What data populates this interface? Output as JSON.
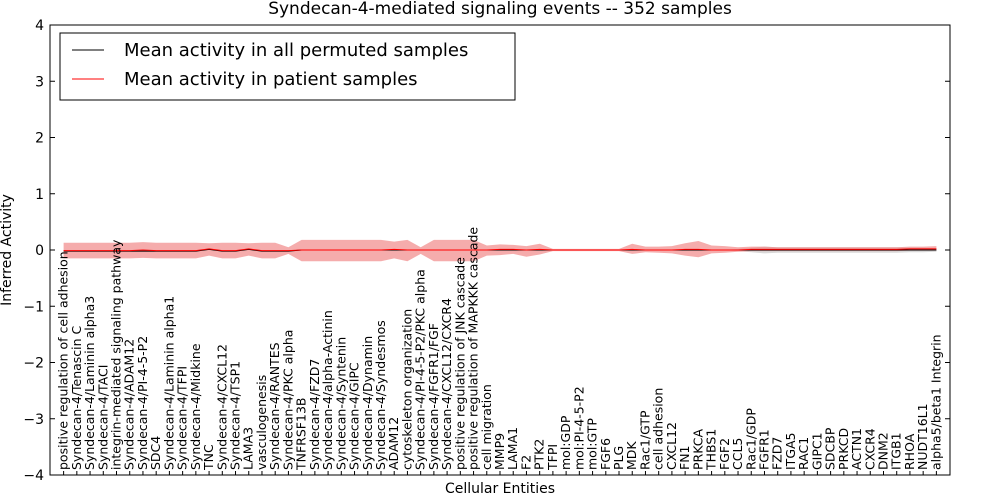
{
  "chart_data": {
    "type": "line",
    "title": "Syndecan-4-mediated signaling events -- 352 samples",
    "xlabel": "Cellular Entities",
    "ylabel": "Inferred Activity",
    "ylim": [
      -4,
      4
    ],
    "yticks": [
      -4,
      -3,
      -2,
      -1,
      0,
      1,
      2,
      3,
      4
    ],
    "ytick_labels": [
      "−4",
      "−3",
      "−2",
      "−1",
      "0",
      "1",
      "2",
      "3",
      "4"
    ],
    "grid": false,
    "legend_position": "top-left",
    "colors": {
      "permuted": "#000000",
      "patient": "#ff0000",
      "band": "#f08080",
      "grey_band": "#c0c0c0"
    },
    "categories": [
      "positive regulation of cell adhesion",
      "Syndecan-4/Tenascin C",
      "Syndecan-4/Laminin alpha3",
      "Syndecan-4/TACI",
      "integrin-mediated signaling pathway",
      "Syndecan-4/ADAM12",
      "Syndecan-4/PI-4-5-P2",
      "SDC4",
      "Syndecan-4/Laminin alpha1",
      "Syndecan-4/TFPI",
      "Syndecan-4/Midkine",
      "TNC",
      "Syndecan-4/CXCL12",
      "Syndecan-4/TSP1",
      "LAMA3",
      "vasculogenesis",
      "Syndecan-4/RANTES",
      "Syndecan-4/PKC alpha",
      "TNFRSF13B",
      "Syndecan-4/FZD7",
      "Syndecan-4/alpha-Actinin",
      "Syndecan-4/Syntenin",
      "Syndecan-4/GIPC",
      "Syndecan-4/Dynamin",
      "Syndecan-4/Syndesmos",
      "ADAM12",
      "cytoskeleton organization",
      "Syndecan-4/PI-4-5-P2/PKC alpha",
      "Syndecan-4/FGFR1/FGF",
      "Syndecan-4/CXCL12/CXCR4",
      "positive regulation of JNK cascade",
      "positive regulation of MAPKKK cascade",
      "cell migration",
      "MMP9",
      "LAMA1",
      "F2",
      "PTK2",
      "TFPI",
      "mol:GDP",
      "mol:PI-4-5-P2",
      "mol:GTP",
      "FGF6",
      "PLG",
      "MDK",
      "Rac1/GTP",
      "cell adhesion",
      "CXCL12",
      "FN1",
      "PRKCA",
      "THBS1",
      "FGF2",
      "CCL5",
      "Rac1/GDP",
      "FGFR1",
      "FZD7",
      "ITGA5",
      "RAC1",
      "GIPC1",
      "SDCBP",
      "PRKCD",
      "ACTN1",
      "CXCR4",
      "DNM2",
      "ITGB1",
      "RHOA",
      "NUDT16L1",
      "alpha5/beta1 Integrin"
    ],
    "series": [
      {
        "name": "Mean activity in all permuted samples",
        "color": "#000000",
        "values": [
          -0.02,
          -0.02,
          -0.02,
          -0.02,
          -0.02,
          -0.02,
          -0.02,
          -0.02,
          -0.02,
          -0.02,
          -0.02,
          0.01,
          -0.02,
          -0.02,
          0.01,
          -0.02,
          -0.02,
          -0.02,
          0.0,
          0.0,
          0.0,
          0.0,
          0.0,
          0.0,
          0.0,
          0.0,
          0.0,
          0.0,
          0.0,
          0.0,
          0.0,
          0.0,
          0.0,
          0.0,
          0.0,
          0.0,
          0.0,
          0.0,
          0.0,
          0.0,
          0.0,
          0.0,
          0.0,
          0.0,
          0.0,
          0.0,
          0.0,
          0.0,
          0.0,
          0.0,
          0.0,
          0.0,
          0.0,
          0.0,
          0.0,
          0.0,
          0.0,
          0.0,
          0.0,
          0.0,
          0.0,
          0.0,
          0.0,
          0.0,
          0.0,
          0.0,
          0.0
        ],
        "lower": [
          -0.02,
          -0.02,
          -0.02,
          -0.02,
          -0.02,
          -0.02,
          -0.02,
          -0.02,
          -0.02,
          -0.02,
          -0.02,
          0.01,
          -0.02,
          -0.02,
          0.01,
          -0.02,
          -0.02,
          -0.02,
          0.0,
          0.0,
          0.0,
          0.0,
          0.0,
          0.0,
          0.0,
          0.0,
          0.0,
          0.0,
          0.0,
          0.0,
          0.0,
          0.0,
          0.0,
          0.0,
          0.0,
          0.0,
          0.0,
          0.0,
          0.0,
          0.0,
          0.0,
          0.0,
          0.0,
          0.0,
          0.0,
          0.0,
          0.0,
          0.0,
          0.0,
          0.0,
          0.0,
          -0.02,
          -0.04,
          -0.06,
          -0.05,
          -0.05,
          -0.05,
          -0.05,
          -0.05,
          -0.05,
          -0.05,
          -0.05,
          -0.05,
          -0.05,
          -0.04,
          -0.04,
          -0.03
        ],
        "upper": [
          -0.02,
          -0.02,
          -0.02,
          -0.02,
          -0.02,
          -0.02,
          -0.02,
          -0.02,
          -0.02,
          -0.02,
          -0.02,
          0.01,
          -0.02,
          -0.02,
          0.01,
          -0.02,
          -0.02,
          -0.02,
          0.0,
          0.0,
          0.0,
          0.0,
          0.0,
          0.0,
          0.0,
          0.0,
          0.0,
          0.0,
          0.0,
          0.0,
          0.0,
          0.0,
          0.0,
          0.0,
          0.0,
          0.0,
          0.0,
          0.0,
          0.0,
          0.0,
          0.0,
          0.0,
          0.0,
          0.0,
          0.0,
          0.0,
          0.0,
          0.0,
          0.0,
          0.0,
          0.0,
          0.02,
          0.04,
          0.06,
          0.05,
          0.05,
          0.05,
          0.05,
          0.05,
          0.05,
          0.05,
          0.05,
          0.05,
          0.05,
          0.04,
          0.04,
          0.03
        ]
      },
      {
        "name": "Mean activity in patient samples",
        "color": "#ff0000",
        "values": [
          -0.01,
          -0.01,
          -0.01,
          -0.01,
          -0.01,
          -0.01,
          0.0,
          -0.01,
          -0.01,
          -0.01,
          -0.01,
          0.02,
          -0.01,
          -0.01,
          0.02,
          -0.01,
          -0.01,
          -0.01,
          0.0,
          0.0,
          0.0,
          0.0,
          0.0,
          0.0,
          0.0,
          0.01,
          0.0,
          0.0,
          0.0,
          0.0,
          0.0,
          0.0,
          0.0,
          0.01,
          0.01,
          0.0,
          0.01,
          0.0,
          0.0,
          0.0,
          0.0,
          0.0,
          0.0,
          0.01,
          0.0,
          0.0,
          0.0,
          0.01,
          0.01,
          0.0,
          0.0,
          0.0,
          0.01,
          0.01,
          0.01,
          0.01,
          0.01,
          0.01,
          0.01,
          0.01,
          0.01,
          0.01,
          0.01,
          0.01,
          0.02,
          0.02,
          0.02
        ],
        "lower": [
          -0.15,
          -0.15,
          -0.15,
          -0.15,
          -0.15,
          -0.15,
          -0.14,
          -0.15,
          -0.15,
          -0.15,
          -0.15,
          -0.1,
          -0.15,
          -0.15,
          -0.1,
          -0.15,
          -0.15,
          -0.07,
          -0.2,
          -0.2,
          -0.2,
          -0.2,
          -0.2,
          -0.2,
          -0.2,
          -0.15,
          -0.2,
          -0.07,
          -0.2,
          -0.2,
          -0.2,
          -0.2,
          -0.1,
          -0.09,
          -0.07,
          -0.12,
          -0.08,
          -0.02,
          -0.02,
          -0.02,
          -0.02,
          -0.02,
          -0.02,
          -0.07,
          -0.04,
          -0.05,
          -0.06,
          -0.1,
          -0.13,
          -0.06,
          -0.05,
          -0.03,
          -0.02,
          -0.02,
          -0.02,
          -0.02,
          -0.02,
          -0.02,
          -0.02,
          -0.02,
          -0.02,
          -0.02,
          -0.02,
          -0.02,
          -0.01,
          -0.01,
          -0.01
        ],
        "upper": [
          0.13,
          0.13,
          0.13,
          0.13,
          0.13,
          0.13,
          0.14,
          0.13,
          0.13,
          0.13,
          0.13,
          0.12,
          0.13,
          0.13,
          0.12,
          0.13,
          0.13,
          0.05,
          0.18,
          0.18,
          0.18,
          0.18,
          0.18,
          0.18,
          0.18,
          0.15,
          0.18,
          0.05,
          0.18,
          0.18,
          0.18,
          0.18,
          0.08,
          0.1,
          0.09,
          0.07,
          0.11,
          0.02,
          0.02,
          0.02,
          0.02,
          0.02,
          0.02,
          0.11,
          0.06,
          0.06,
          0.07,
          0.12,
          0.16,
          0.08,
          0.07,
          0.05,
          0.06,
          0.06,
          0.05,
          0.05,
          0.05,
          0.05,
          0.05,
          0.05,
          0.05,
          0.05,
          0.05,
          0.05,
          0.06,
          0.06,
          0.07
        ]
      }
    ]
  }
}
